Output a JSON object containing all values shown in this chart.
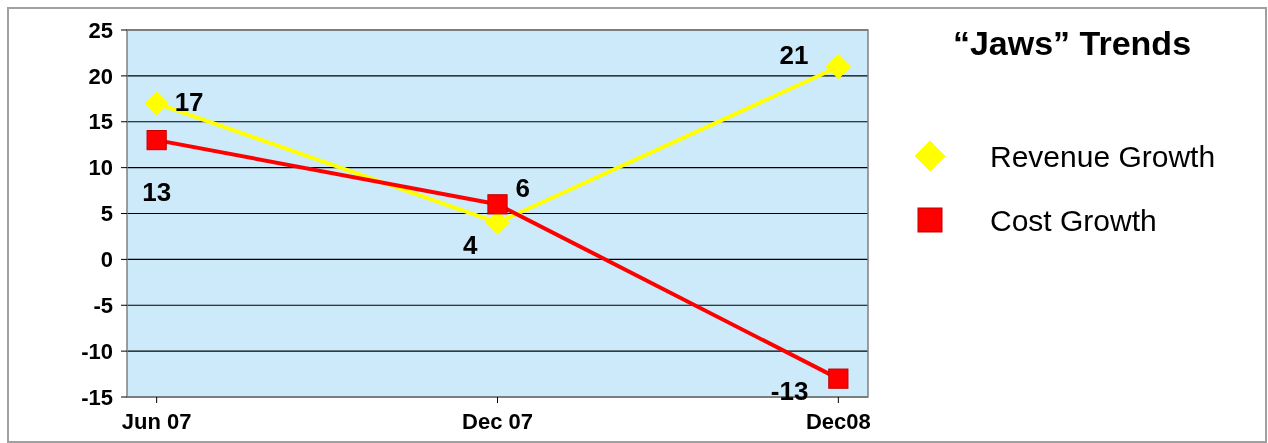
{
  "chart_data": {
    "type": "line",
    "title": "“Jaws”  Trends",
    "categories": [
      "Jun 07",
      "Dec 07",
      "Dec08"
    ],
    "series": [
      {
        "name": "Revenue Growth",
        "color": "#ffff00",
        "values": [
          17,
          4,
          21
        ],
        "marker": "diamond"
      },
      {
        "name": "Cost Growth",
        "color": "#ff0000",
        "values": [
          13,
          6,
          -13
        ],
        "marker": "square"
      }
    ],
    "ylim": [
      -15,
      25
    ],
    "yticks": [
      -15,
      -10,
      -5,
      0,
      5,
      10,
      15,
      20,
      25
    ],
    "grid": "y",
    "legend": "right",
    "data_labels": true,
    "line_style": "solid"
  }
}
